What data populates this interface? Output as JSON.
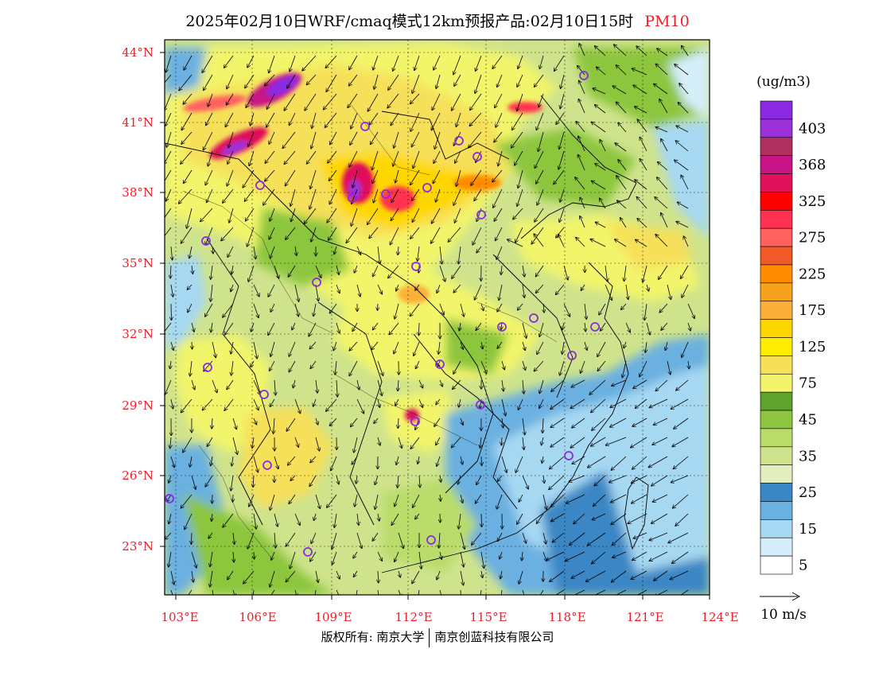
{
  "title": {
    "main": "2025年02月10日WRF/cmaq模式12km预报产品:02月10日15时",
    "pollutant": "PM10"
  },
  "map": {
    "lat_labels": [
      "44°N",
      "41°N",
      "38°N",
      "35°N",
      "32°N",
      "29°N",
      "26°N",
      "23°N"
    ],
    "lon_labels": [
      "103°E",
      "106°E",
      "109°E",
      "112°E",
      "115°E",
      "118°E",
      "121°E",
      "124°E"
    ]
  },
  "legend": {
    "unit": "(ug/m3)",
    "levels": [
      {
        "label": "",
        "color": "#8a2be2"
      },
      {
        "label": "403",
        "color": "#9b30d9"
      },
      {
        "label": "",
        "color": "#b03060"
      },
      {
        "label": "368",
        "color": "#c71585"
      },
      {
        "label": "",
        "color": "#e0105a"
      },
      {
        "label": "325",
        "color": "#ff0000"
      },
      {
        "label": "",
        "color": "#ff3050"
      },
      {
        "label": "275",
        "color": "#ff6060"
      },
      {
        "label": "",
        "color": "#f05a28"
      },
      {
        "label": "225",
        "color": "#ff8c00"
      },
      {
        "label": "",
        "color": "#f7a21b"
      },
      {
        "label": "175",
        "color": "#fbb03b"
      },
      {
        "label": "",
        "color": "#ffd700"
      },
      {
        "label": "125",
        "color": "#ffee00"
      },
      {
        "label": "",
        "color": "#f6e05a"
      },
      {
        "label": "75",
        "color": "#f2f56b"
      },
      {
        "label": "",
        "color": "#5fa32e"
      },
      {
        "label": "45",
        "color": "#8cc63e"
      },
      {
        "label": "",
        "color": "#b9dc6a"
      },
      {
        "label": "35",
        "color": "#cfe38c"
      },
      {
        "label": "",
        "color": "#e3edc0"
      },
      {
        "label": "25",
        "color": "#3b86c4"
      },
      {
        "label": "",
        "color": "#6ab0e0"
      },
      {
        "label": "15",
        "color": "#a6d8f2"
      },
      {
        "label": "",
        "color": "#d5eefa"
      },
      {
        "label": "5",
        "color": "#ffffff"
      }
    ]
  },
  "wind_scale": {
    "label": "10 m/s"
  },
  "footer": {
    "left": "版权所有: 南京大学",
    "right": "南京创蓝科技有限公司"
  }
}
